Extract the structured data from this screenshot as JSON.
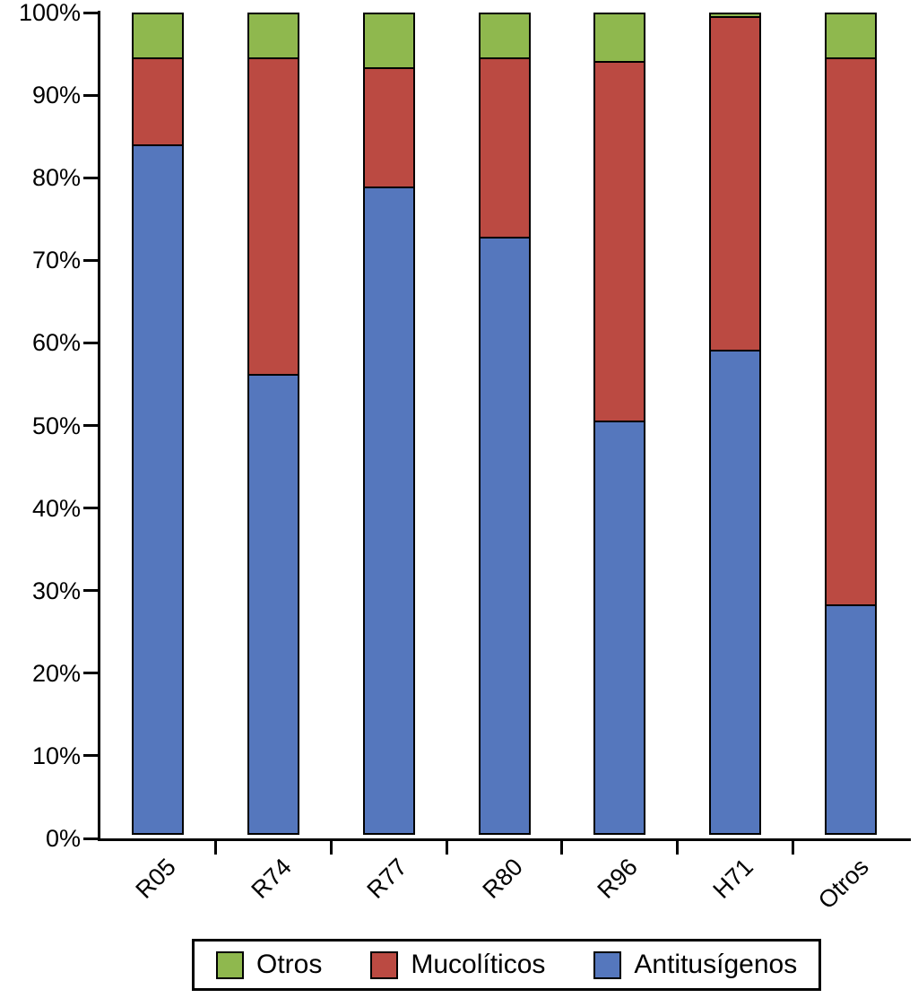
{
  "chart_data": {
    "type": "bar",
    "stacked": true,
    "percent": true,
    "title": "",
    "xlabel": "",
    "ylabel": "",
    "grid": false,
    "ylim": [
      0,
      100
    ],
    "ytick_step": 10,
    "ytick_labels": [
      "0%",
      "10%",
      "20%",
      "30%",
      "40%",
      "50%",
      "60%",
      "70%",
      "80%",
      "90%",
      "100%"
    ],
    "categories": [
      "R05",
      "R74",
      "R77",
      "R80",
      "R96",
      "H71",
      "Otros"
    ],
    "series": [
      {
        "name": "Antitusígenos",
        "color": "#5577bd",
        "values": [
          83.6,
          55.8,
          78.5,
          72.4,
          50.2,
          58.7,
          27.9
        ]
      },
      {
        "name": "Mucolíticos",
        "color": "#bb4a42",
        "values": [
          10.8,
          38.6,
          14.7,
          22.0,
          43.7,
          40.6,
          66.5
        ]
      },
      {
        "name": "Otros",
        "color": "#8fb84e",
        "values": [
          5.6,
          5.6,
          6.8,
          5.6,
          6.1,
          0.7,
          5.6
        ]
      }
    ],
    "legend": {
      "position": "bottom",
      "entries": [
        "Otros",
        "Mucolíticos",
        "Antitusígenos"
      ]
    },
    "colors": {
      "axis": "#000000",
      "outline": "#000000",
      "background": "#ffffff"
    }
  }
}
